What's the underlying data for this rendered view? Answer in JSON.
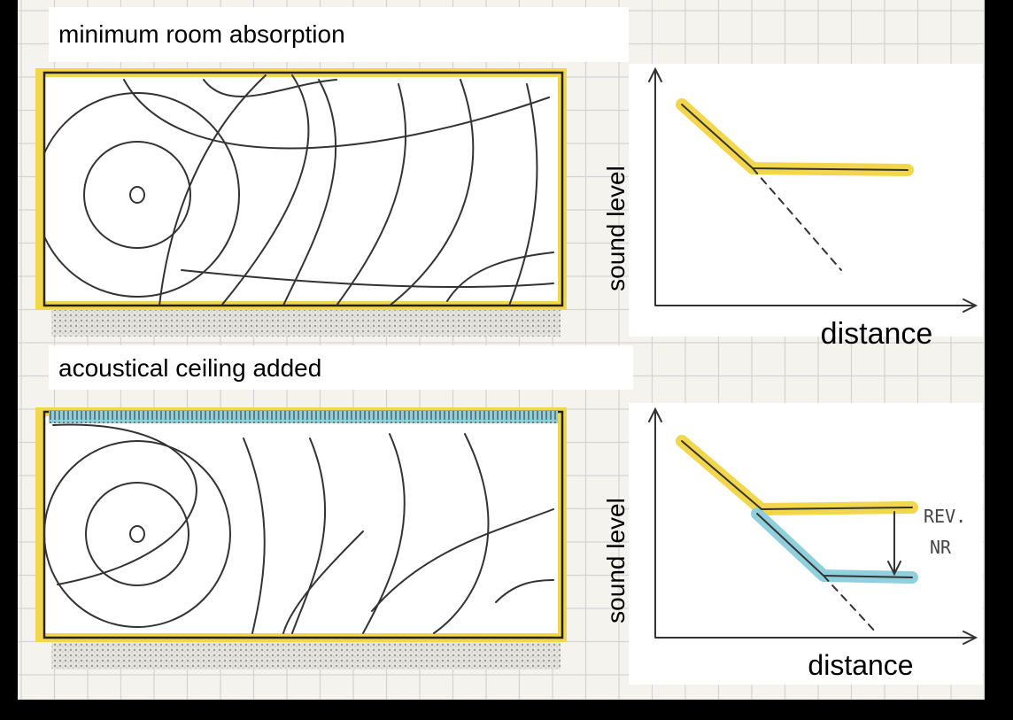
{
  "panels": [
    {
      "title": "minimum room absorption",
      "graph": {
        "y_label": "sound level",
        "x_label": "distance"
      }
    },
    {
      "title": "acoustical ceiling added",
      "graph": {
        "y_label": "sound level",
        "x_label": "distance",
        "annotation": [
          "REV.",
          "NR"
        ]
      }
    }
  ]
}
